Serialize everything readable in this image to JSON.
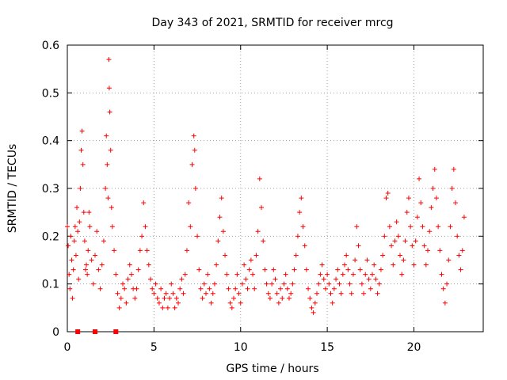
{
  "chart_data": {
    "type": "scatter",
    "title": "Day 343 of 2021, SRMTID for receiver mrcg",
    "xlabel": "GPS time / hours",
    "ylabel": "SRMTID / TECUs",
    "xlim": [
      0,
      24
    ],
    "ylim": [
      0,
      0.6
    ],
    "x_ticks": [
      0,
      5,
      10,
      15,
      20
    ],
    "x_tick_labels": [
      "0",
      "5",
      "10",
      "15",
      "20"
    ],
    "y_ticks": [
      0,
      0.1,
      0.2,
      0.3,
      0.4,
      0.5,
      0.6
    ],
    "y_tick_labels": [
      "0",
      "0.1",
      "0.2",
      "0.3",
      "0.4",
      "0.5",
      "0.6"
    ],
    "grid": true,
    "marker": "+",
    "color": "#ff0000",
    "series": [
      {
        "name": "SRMTID",
        "points": [
          [
            0.0,
            0.22
          ],
          [
            0.05,
            0.18
          ],
          [
            0.1,
            0.12
          ],
          [
            0.15,
            0.09
          ],
          [
            0.2,
            0.2
          ],
          [
            0.25,
            0.15
          ],
          [
            0.3,
            0.07
          ],
          [
            0.35,
            0.13
          ],
          [
            0.4,
            0.19
          ],
          [
            0.45,
            0.22
          ],
          [
            0.5,
            0.16
          ],
          [
            0.55,
            0.26
          ],
          [
            0.6,
            0.21
          ],
          [
            0.65,
            0.11
          ],
          [
            0.7,
            0.23
          ],
          [
            0.75,
            0.3
          ],
          [
            0.8,
            0.38
          ],
          [
            0.85,
            0.42
          ],
          [
            0.9,
            0.35
          ],
          [
            0.95,
            0.25
          ],
          [
            1.0,
            0.19
          ],
          [
            1.05,
            0.13
          ],
          [
            1.1,
            0.14
          ],
          [
            1.15,
            0.12
          ],
          [
            1.2,
            0.17
          ],
          [
            1.25,
            0.25
          ],
          [
            1.3,
            0.22
          ],
          [
            1.4,
            0.15
          ],
          [
            1.5,
            0.1
          ],
          [
            1.6,
            0.16
          ],
          [
            1.7,
            0.21
          ],
          [
            1.8,
            0.13
          ],
          [
            1.9,
            0.09
          ],
          [
            2.0,
            0.14
          ],
          [
            2.1,
            0.19
          ],
          [
            2.2,
            0.3
          ],
          [
            2.25,
            0.41
          ],
          [
            2.3,
            0.35
          ],
          [
            2.35,
            0.28
          ],
          [
            2.4,
            0.57
          ],
          [
            2.42,
            0.51
          ],
          [
            2.45,
            0.46
          ],
          [
            2.5,
            0.38
          ],
          [
            2.55,
            0.26
          ],
          [
            2.6,
            0.22
          ],
          [
            2.7,
            0.17
          ],
          [
            2.8,
            0.12
          ],
          [
            2.9,
            0.08
          ],
          [
            3.0,
            0.05
          ],
          [
            3.1,
            0.07
          ],
          [
            3.2,
            0.1
          ],
          [
            3.3,
            0.09
          ],
          [
            3.4,
            0.06
          ],
          [
            3.5,
            0.11
          ],
          [
            3.6,
            0.14
          ],
          [
            3.7,
            0.12
          ],
          [
            3.8,
            0.09
          ],
          [
            3.9,
            0.07
          ],
          [
            4.0,
            0.09
          ],
          [
            4.1,
            0.13
          ],
          [
            4.2,
            0.17
          ],
          [
            4.3,
            0.2
          ],
          [
            4.4,
            0.27
          ],
          [
            4.5,
            0.22
          ],
          [
            4.6,
            0.17
          ],
          [
            4.7,
            0.14
          ],
          [
            4.8,
            0.11
          ],
          [
            4.9,
            0.09
          ],
          [
            5.0,
            0.08
          ],
          [
            5.1,
            0.1
          ],
          [
            5.2,
            0.07
          ],
          [
            5.3,
            0.06
          ],
          [
            5.4,
            0.09
          ],
          [
            5.5,
            0.05
          ],
          [
            5.6,
            0.07
          ],
          [
            5.7,
            0.08
          ],
          [
            5.8,
            0.05
          ],
          [
            5.9,
            0.07
          ],
          [
            6.0,
            0.1
          ],
          [
            6.1,
            0.08
          ],
          [
            6.2,
            0.05
          ],
          [
            6.3,
            0.07
          ],
          [
            6.4,
            0.06
          ],
          [
            6.5,
            0.09
          ],
          [
            6.6,
            0.11
          ],
          [
            6.7,
            0.08
          ],
          [
            6.8,
            0.12
          ],
          [
            6.9,
            0.17
          ],
          [
            7.0,
            0.27
          ],
          [
            7.1,
            0.22
          ],
          [
            7.2,
            0.35
          ],
          [
            7.3,
            0.41
          ],
          [
            7.35,
            0.38
          ],
          [
            7.4,
            0.3
          ],
          [
            7.5,
            0.2
          ],
          [
            7.6,
            0.13
          ],
          [
            7.7,
            0.09
          ],
          [
            7.8,
            0.07
          ],
          [
            7.9,
            0.1
          ],
          [
            8.0,
            0.08
          ],
          [
            8.1,
            0.12
          ],
          [
            8.2,
            0.09
          ],
          [
            8.3,
            0.06
          ],
          [
            8.4,
            0.08
          ],
          [
            8.5,
            0.1
          ],
          [
            8.6,
            0.14
          ],
          [
            8.7,
            0.19
          ],
          [
            8.8,
            0.24
          ],
          [
            8.9,
            0.28
          ],
          [
            9.0,
            0.21
          ],
          [
            9.1,
            0.16
          ],
          [
            9.2,
            0.12
          ],
          [
            9.3,
            0.09
          ],
          [
            9.4,
            0.06
          ],
          [
            9.5,
            0.05
          ],
          [
            9.6,
            0.07
          ],
          [
            9.7,
            0.09
          ],
          [
            9.8,
            0.12
          ],
          [
            9.9,
            0.08
          ],
          [
            10.0,
            0.06
          ],
          [
            10.1,
            0.1
          ],
          [
            10.2,
            0.14
          ],
          [
            10.3,
            0.11
          ],
          [
            10.4,
            0.09
          ],
          [
            10.5,
            0.13
          ],
          [
            10.6,
            0.15
          ],
          [
            10.7,
            0.12
          ],
          [
            10.8,
            0.09
          ],
          [
            10.9,
            0.16
          ],
          [
            11.0,
            0.21
          ],
          [
            11.1,
            0.32
          ],
          [
            11.2,
            0.26
          ],
          [
            11.3,
            0.19
          ],
          [
            11.4,
            0.13
          ],
          [
            11.5,
            0.1
          ],
          [
            11.6,
            0.08
          ],
          [
            11.7,
            0.07
          ],
          [
            11.8,
            0.1
          ],
          [
            11.9,
            0.13
          ],
          [
            12.0,
            0.11
          ],
          [
            12.1,
            0.08
          ],
          [
            12.2,
            0.06
          ],
          [
            12.3,
            0.09
          ],
          [
            12.4,
            0.07
          ],
          [
            12.5,
            0.1
          ],
          [
            12.6,
            0.12
          ],
          [
            12.7,
            0.09
          ],
          [
            12.8,
            0.07
          ],
          [
            12.9,
            0.08
          ],
          [
            13.0,
            0.1
          ],
          [
            13.1,
            0.13
          ],
          [
            13.2,
            0.16
          ],
          [
            13.3,
            0.2
          ],
          [
            13.4,
            0.25
          ],
          [
            13.5,
            0.28
          ],
          [
            13.6,
            0.22
          ],
          [
            13.7,
            0.18
          ],
          [
            13.8,
            0.13
          ],
          [
            13.9,
            0.09
          ],
          [
            14.0,
            0.07
          ],
          [
            14.1,
            0.05
          ],
          [
            14.2,
            0.04
          ],
          [
            14.3,
            0.06
          ],
          [
            14.4,
            0.08
          ],
          [
            14.5,
            0.1
          ],
          [
            14.6,
            0.12
          ],
          [
            14.7,
            0.14
          ],
          [
            14.8,
            0.11
          ],
          [
            14.9,
            0.09
          ],
          [
            15.0,
            0.12
          ],
          [
            15.1,
            0.1
          ],
          [
            15.2,
            0.08
          ],
          [
            15.3,
            0.06
          ],
          [
            15.4,
            0.09
          ],
          [
            15.5,
            0.11
          ],
          [
            15.6,
            0.13
          ],
          [
            15.7,
            0.1
          ],
          [
            15.8,
            0.08
          ],
          [
            15.9,
            0.12
          ],
          [
            16.0,
            0.14
          ],
          [
            16.1,
            0.16
          ],
          [
            16.2,
            0.13
          ],
          [
            16.3,
            0.1
          ],
          [
            16.4,
            0.08
          ],
          [
            16.5,
            0.12
          ],
          [
            16.6,
            0.15
          ],
          [
            16.7,
            0.22
          ],
          [
            16.8,
            0.18
          ],
          [
            16.9,
            0.13
          ],
          [
            17.0,
            0.1
          ],
          [
            17.1,
            0.08
          ],
          [
            17.2,
            0.12
          ],
          [
            17.3,
            0.15
          ],
          [
            17.4,
            0.11
          ],
          [
            17.5,
            0.09
          ],
          [
            17.6,
            0.12
          ],
          [
            17.7,
            0.14
          ],
          [
            17.8,
            0.11
          ],
          [
            17.9,
            0.08
          ],
          [
            18.0,
            0.1
          ],
          [
            18.1,
            0.13
          ],
          [
            18.2,
            0.16
          ],
          [
            18.3,
            0.2
          ],
          [
            18.4,
            0.28
          ],
          [
            18.5,
            0.29
          ],
          [
            18.6,
            0.22
          ],
          [
            18.7,
            0.18
          ],
          [
            18.8,
            0.14
          ],
          [
            18.9,
            0.19
          ],
          [
            19.0,
            0.23
          ],
          [
            19.1,
            0.2
          ],
          [
            19.2,
            0.16
          ],
          [
            19.3,
            0.12
          ],
          [
            19.4,
            0.15
          ],
          [
            19.5,
            0.19
          ],
          [
            19.6,
            0.25
          ],
          [
            19.7,
            0.28
          ],
          [
            19.8,
            0.22
          ],
          [
            19.9,
            0.18
          ],
          [
            20.0,
            0.14
          ],
          [
            20.1,
            0.19
          ],
          [
            20.2,
            0.24
          ],
          [
            20.3,
            0.32
          ],
          [
            20.4,
            0.27
          ],
          [
            20.5,
            0.22
          ],
          [
            20.6,
            0.18
          ],
          [
            20.7,
            0.14
          ],
          [
            20.8,
            0.17
          ],
          [
            20.9,
            0.21
          ],
          [
            21.0,
            0.26
          ],
          [
            21.1,
            0.3
          ],
          [
            21.2,
            0.34
          ],
          [
            21.3,
            0.28
          ],
          [
            21.4,
            0.22
          ],
          [
            21.5,
            0.17
          ],
          [
            21.6,
            0.12
          ],
          [
            21.7,
            0.09
          ],
          [
            21.8,
            0.06
          ],
          [
            21.9,
            0.1
          ],
          [
            22.0,
            0.15
          ],
          [
            22.1,
            0.22
          ],
          [
            22.2,
            0.3
          ],
          [
            22.3,
            0.34
          ],
          [
            22.4,
            0.27
          ],
          [
            22.5,
            0.2
          ],
          [
            22.6,
            0.16
          ],
          [
            22.7,
            0.13
          ],
          [
            22.8,
            0.17
          ],
          [
            22.9,
            0.24
          ]
        ]
      }
    ],
    "zero_points_x": [
      0.6,
      1.6,
      2.8
    ]
  }
}
